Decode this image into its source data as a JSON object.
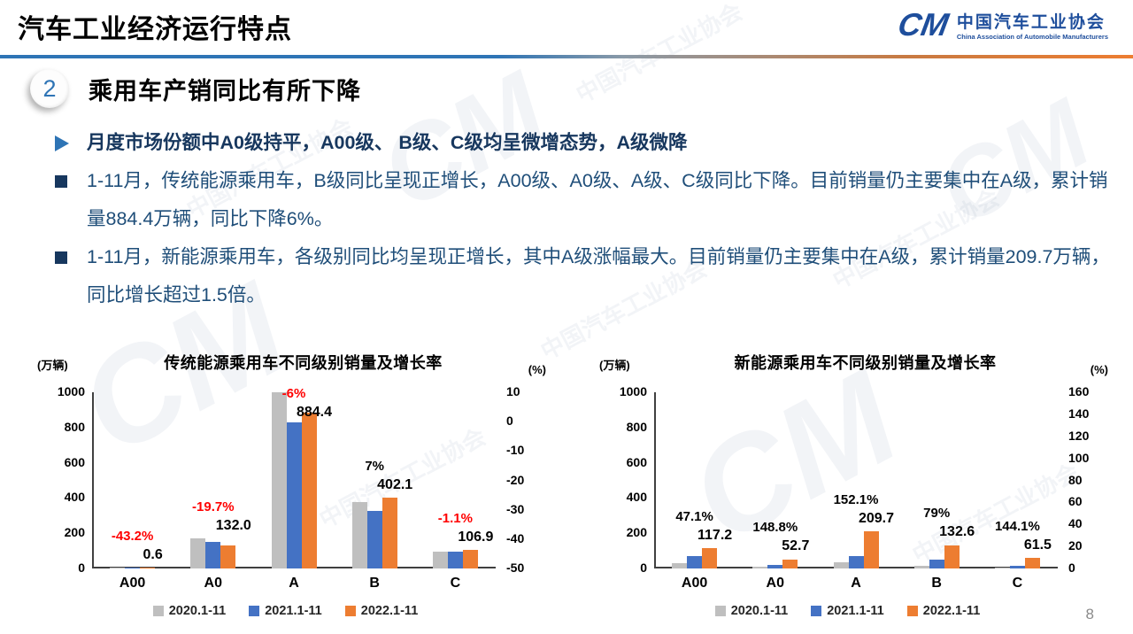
{
  "header": {
    "title": "汽车工业经济运行特点",
    "logo": {
      "glyph": "CM",
      "name_cn": "中国汽车工业协会",
      "name_en": "China Association of Automobile Manufacturers"
    }
  },
  "section": {
    "number": "2",
    "title": "乘用车产销同比有所下降"
  },
  "bullets": [
    {
      "marker": "arrow",
      "text": "月度市场份额中A0级持平，A00级、 B级、C级均呈微增态势，A级微降"
    },
    {
      "marker": "square",
      "text": "1-11月，传统能源乘用车，B级同比呈现正增长，A00级、A0级、A级、C级同比下降。目前销量仍主要集中在A级，累计销量884.4万辆，同比下降6%。"
    },
    {
      "marker": "square",
      "text": "1-11月，新能源乘用车，各级别同比均呈现正增长，其中A级涨幅最大。目前销量仍主要集中在A级，累计销量209.7万辆，同比增长超过1.5倍。"
    }
  ],
  "watermark": {
    "glyph": "CM",
    "text": "中国汽车工业协会"
  },
  "page_number": "8",
  "colors": {
    "accent_blue": "#2E74B5",
    "text_navy": "#1F4E79",
    "bar_gray": "#BFBFBF",
    "bar_blue": "#4472C4",
    "bar_orange": "#ED7D31",
    "growth_red": "#FF0000",
    "axis_black": "#000000"
  },
  "chart_data": [
    {
      "type": "bar",
      "title": "传统能源乘用车不同级别销量及增长率",
      "unit_left": "(万辆)",
      "unit_right": "(%)",
      "categories": [
        "A00",
        "A0",
        "A",
        "B",
        "C"
      ],
      "series": [
        {
          "name": "2020.1-11",
          "color": "#BFBFBF",
          "values": [
            3,
            170,
            1000,
            377,
            97
          ]
        },
        {
          "name": "2021.1-11",
          "color": "#4472C4",
          "values": [
            1.1,
            150,
            830,
            327,
            98
          ]
        },
        {
          "name": "2022.1-11",
          "color": "#ED7D31",
          "values": [
            0.6,
            132.0,
            884.4,
            402.1,
            106.9
          ]
        }
      ],
      "labels": [
        {
          "growth": "-43.2%",
          "growth_color": "#FF0000",
          "value": "0.6"
        },
        {
          "growth": "-19.7%",
          "growth_color": "#FF0000",
          "value": "132.0"
        },
        {
          "growth": "-6%",
          "growth_color": "#FF0000",
          "value": "884.4"
        },
        {
          "growth": "7%",
          "growth_color": "#000000",
          "value": "402.1"
        },
        {
          "growth": "-1.1%",
          "growth_color": "#FF0000",
          "value": "106.9"
        }
      ],
      "y_left": {
        "ticks": [
          "1000",
          "800",
          "600",
          "400",
          "200",
          "0"
        ],
        "max": 1000
      },
      "y_right": {
        "ticks": [
          "10",
          "0",
          "-10",
          "-20",
          "-30",
          "-40",
          "-50"
        ]
      },
      "legend_position": "bottom",
      "grid": false
    },
    {
      "type": "bar",
      "title": "新能源乘用车不同级别销量及增长率",
      "unit_left": "(万辆)",
      "unit_right": "(%)",
      "categories": [
        "A00",
        "A0",
        "A",
        "B",
        "C"
      ],
      "series": [
        {
          "name": "2020.1-11",
          "color": "#BFBFBF",
          "values": [
            28,
            8,
            35,
            15,
            5
          ]
        },
        {
          "name": "2021.1-11",
          "color": "#4472C4",
          "values": [
            70,
            18,
            68,
            48,
            16
          ]
        },
        {
          "name": "2022.1-11",
          "color": "#ED7D31",
          "values": [
            117.2,
            52.7,
            209.7,
            132.6,
            61.5
          ]
        }
      ],
      "labels": [
        {
          "growth": "47.1%",
          "growth_color": "#000000",
          "value": "117.2"
        },
        {
          "growth": "148.8%",
          "growth_color": "#000000",
          "value": "52.7"
        },
        {
          "growth": "152.1%",
          "growth_color": "#000000",
          "value": "209.7"
        },
        {
          "growth": "79%",
          "growth_color": "#000000",
          "value": "132.6"
        },
        {
          "growth": "144.1%",
          "growth_color": "#000000",
          "value": "61.5"
        }
      ],
      "y_left": {
        "ticks": [
          "1000",
          "800",
          "600",
          "400",
          "200",
          "0"
        ],
        "max": 1000
      },
      "y_right": {
        "ticks": [
          "160",
          "140",
          "120",
          "100",
          "80",
          "60",
          "40",
          "20",
          "0"
        ]
      },
      "legend_position": "bottom",
      "grid": false
    }
  ]
}
